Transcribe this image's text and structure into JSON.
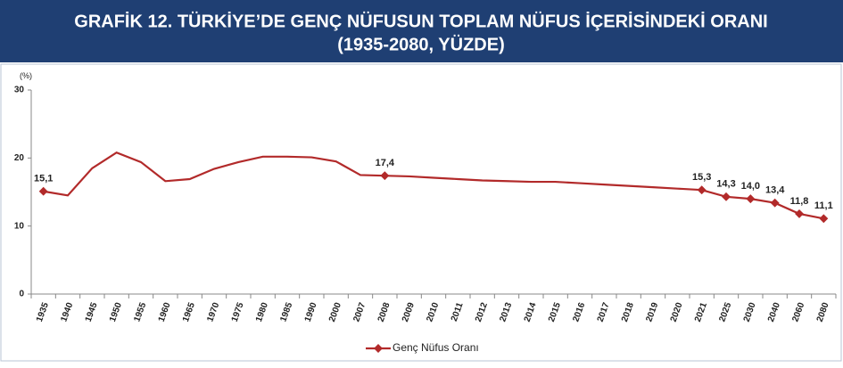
{
  "chart_data": {
    "type": "line",
    "title": "GRAFİK 12. TÜRKİYE’DE GENÇ NÜFUSUN TOPLAM NÜFUS İÇERİSİNDEKİ ORANI",
    "subtitle": "(1935-2080, YÜZDE)",
    "y_label": "(%)",
    "categories": [
      "1935",
      "1940",
      "1945",
      "1950",
      "1955",
      "1960",
      "1965",
      "1970",
      "1975",
      "1980",
      "1985",
      "1990",
      "2000",
      "2007",
      "2008",
      "2009",
      "2010",
      "2011",
      "2012",
      "2013",
      "2014",
      "2015",
      "2016",
      "2017",
      "2018",
      "2019",
      "2020",
      "2021",
      "2025",
      "2030",
      "2040",
      "2060",
      "2080"
    ],
    "series": [
      {
        "name": "Genç Nüfus Oranı",
        "color": "#b22a2a",
        "values": [
          15.1,
          14.5,
          18.5,
          20.8,
          19.4,
          16.6,
          16.9,
          18.4,
          19.4,
          20.2,
          20.2,
          20.1,
          19.5,
          17.5,
          17.4,
          17.3,
          17.1,
          16.9,
          16.7,
          16.6,
          16.5,
          16.5,
          16.3,
          16.1,
          15.9,
          15.7,
          15.5,
          15.3,
          14.3,
          14.0,
          13.4,
          11.8,
          11.1
        ],
        "value_labels": [
          "15,1",
          null,
          null,
          null,
          null,
          null,
          null,
          null,
          null,
          null,
          null,
          null,
          null,
          null,
          "17,4",
          null,
          null,
          null,
          null,
          null,
          null,
          null,
          null,
          null,
          null,
          null,
          null,
          "15,3",
          "14,3",
          "14,0",
          "13,4",
          "11,8",
          "11,1"
        ]
      }
    ],
    "ylim": [
      0,
      30
    ],
    "yticks": [
      0,
      10,
      20,
      30
    ],
    "grid": false,
    "legend": "bottom"
  }
}
